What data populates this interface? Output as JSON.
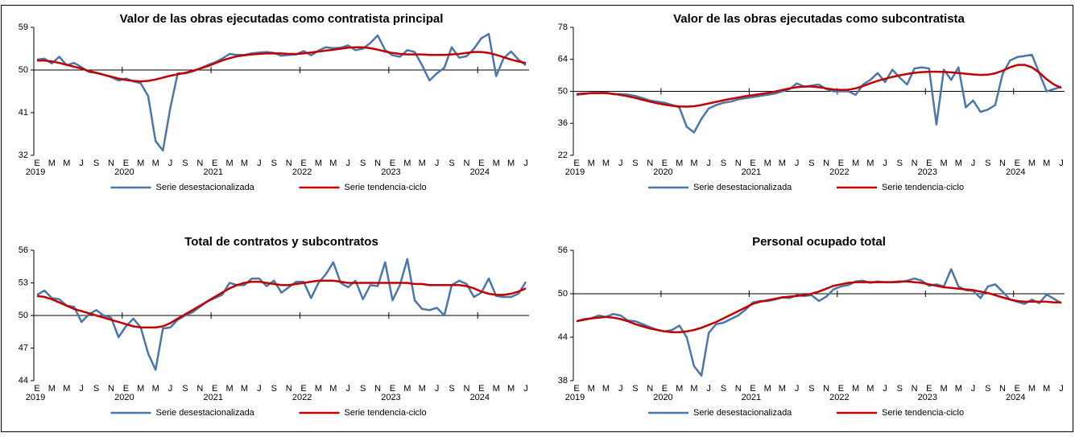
{
  "chart_data": [
    {
      "type": "line",
      "title": "Valor de las obras ejecutadas como contratista principal",
      "categories": [
        "E",
        null,
        "M",
        null,
        "M",
        null,
        "J",
        null,
        "S",
        null,
        "N",
        null,
        "E",
        null,
        "M",
        null,
        "M",
        null,
        "J",
        null,
        "S",
        null,
        "N",
        null,
        "E",
        null,
        "M",
        null,
        "M",
        null,
        "J",
        null,
        "S",
        null,
        "N",
        null,
        "E",
        null,
        "M",
        null,
        "M",
        null,
        "J",
        null,
        "S",
        null,
        "N",
        null,
        "E",
        null,
        "M",
        null,
        "M",
        null,
        "J",
        null,
        "S",
        null,
        "N",
        null,
        "E",
        null,
        "M",
        null,
        "M",
        null,
        "J"
      ],
      "year_labels": [
        "2019",
        "2020",
        "2021",
        "2022",
        "2023",
        "2024"
      ],
      "ylim": [
        32,
        59
      ],
      "yticks": [
        32,
        41,
        50,
        59
      ],
      "reference_line": 50,
      "series": [
        {
          "name": "Serie desestacionalizada",
          "color": "#4a76a8",
          "values": [
            52.2,
            52.4,
            51.4,
            52.8,
            51.0,
            51.5,
            50.6,
            49.6,
            49.4,
            49.0,
            48.5,
            47.8,
            48.2,
            47.6,
            47.2,
            44.5,
            35.0,
            33.0,
            42.0,
            49.3,
            49.3,
            49.7,
            50.3,
            51.0,
            51.6,
            52.4,
            53.4,
            53.2,
            53.2,
            53.5,
            53.7,
            53.8,
            53.6,
            53.0,
            53.2,
            53.3,
            54.0,
            53.1,
            54.1,
            54.8,
            54.6,
            54.7,
            55.2,
            54.2,
            54.5,
            55.7,
            57.3,
            54.2,
            53.1,
            52.8,
            54.2,
            53.8,
            51.0,
            47.8,
            49.3,
            50.5,
            54.8,
            52.6,
            52.9,
            54.5,
            56.7,
            57.6,
            48.7,
            52.5,
            53.9,
            52.2,
            51.0
          ]
        },
        {
          "name": "Serie tendencia-ciclo",
          "color": "#c00000",
          "values": [
            52.0,
            52.0,
            51.8,
            51.5,
            51.1,
            50.7,
            50.3,
            49.8,
            49.4,
            49.0,
            48.6,
            48.2,
            47.9,
            47.7,
            47.6,
            47.7,
            48.0,
            48.4,
            48.8,
            49.1,
            49.4,
            49.8,
            50.3,
            50.8,
            51.4,
            52.0,
            52.5,
            52.9,
            53.1,
            53.3,
            53.4,
            53.5,
            53.5,
            53.5,
            53.4,
            53.4,
            53.5,
            53.7,
            53.9,
            54.1,
            54.3,
            54.5,
            54.7,
            54.8,
            54.8,
            54.6,
            54.3,
            53.9,
            53.6,
            53.4,
            53.3,
            53.3,
            53.3,
            53.2,
            53.2,
            53.2,
            53.3,
            53.4,
            53.6,
            53.8,
            53.8,
            53.6,
            53.2,
            52.7,
            52.2,
            51.8,
            51.5
          ]
        }
      ]
    },
    {
      "type": "line",
      "title": "Valor de las obras ejecutadas como subcontratista",
      "categories": [
        "E",
        null,
        "M",
        null,
        "M",
        null,
        "J",
        null,
        "S",
        null,
        "N",
        null,
        "E",
        null,
        "M",
        null,
        "M",
        null,
        "J",
        null,
        "S",
        null,
        "N",
        null,
        "E",
        null,
        "M",
        null,
        "M",
        null,
        "J",
        null,
        "S",
        null,
        "N",
        null,
        "E",
        null,
        "M",
        null,
        "M",
        null,
        "J",
        null,
        "S",
        null,
        "N",
        null,
        "E",
        null,
        "M",
        null,
        "M",
        null,
        "J",
        null,
        "S",
        null,
        "N",
        null,
        "E",
        null,
        "M",
        null,
        "M",
        null,
        "J"
      ],
      "year_labels": [
        "2019",
        "2020",
        "2021",
        "2022",
        "2023",
        "2024"
      ],
      "ylim": [
        22,
        78
      ],
      "yticks": [
        22,
        36,
        50,
        64,
        78
      ],
      "reference_line": 50,
      "series": [
        {
          "name": "Serie desestacionalizada",
          "color": "#4a76a8",
          "values": [
            48.5,
            48.8,
            49.3,
            49.2,
            49.5,
            48.7,
            48.8,
            48.6,
            48.0,
            47.0,
            46.0,
            45.5,
            45.0,
            44.0,
            43.0,
            34.5,
            32.0,
            38.0,
            42.5,
            44.0,
            45.0,
            45.5,
            46.5,
            47.0,
            47.5,
            48.0,
            48.5,
            49.0,
            50.0,
            51.0,
            53.5,
            52.0,
            52.5,
            53.0,
            51.0,
            50.0,
            50.0,
            50.0,
            48.5,
            53.0,
            55.0,
            58.0,
            54.0,
            59.5,
            56.0,
            53.0,
            60.0,
            60.5,
            60.0,
            35.5,
            59.5,
            55.0,
            60.5,
            43.0,
            46.0,
            41.0,
            42.0,
            44.0,
            57.5,
            63.5,
            65.0,
            65.5,
            66.0,
            58.0,
            50.0,
            51.0,
            52.0
          ]
        },
        {
          "name": "Serie tendencia-ciclo",
          "color": "#c00000",
          "values": [
            48.8,
            49.0,
            49.2,
            49.3,
            49.2,
            48.9,
            48.4,
            47.8,
            47.1,
            46.3,
            45.5,
            44.8,
            44.2,
            43.7,
            43.4,
            43.3,
            43.5,
            44.0,
            44.7,
            45.4,
            46.1,
            46.7,
            47.3,
            47.9,
            48.3,
            48.8,
            49.3,
            49.9,
            50.6,
            51.3,
            51.8,
            52.1,
            52.1,
            51.8,
            51.3,
            50.8,
            50.6,
            50.7,
            51.3,
            52.3,
            53.5,
            54.6,
            55.5,
            56.3,
            57.0,
            57.6,
            58.1,
            58.4,
            58.6,
            58.6,
            58.5,
            58.3,
            58.0,
            57.7,
            57.4,
            57.2,
            57.3,
            57.9,
            59.0,
            60.5,
            61.5,
            61.6,
            60.5,
            58.2,
            55.3,
            53.0,
            51.5
          ]
        }
      ]
    },
    {
      "type": "line",
      "title": "Total de contratos y subcontratos",
      "categories": [
        "E",
        null,
        "M",
        null,
        "M",
        null,
        "J",
        null,
        "S",
        null,
        "N",
        null,
        "E",
        null,
        "M",
        null,
        "M",
        null,
        "J",
        null,
        "S",
        null,
        "N",
        null,
        "E",
        null,
        "M",
        null,
        "M",
        null,
        "J",
        null,
        "S",
        null,
        "N",
        null,
        "E",
        null,
        "M",
        null,
        "M",
        null,
        "J",
        null,
        "S",
        null,
        "N",
        null,
        "E",
        null,
        "M",
        null,
        "M",
        null,
        "J",
        null,
        "S",
        null,
        "N",
        null,
        "E",
        null,
        "M",
        null,
        "M",
        null,
        "J"
      ],
      "year_labels": [
        "2019",
        "2020",
        "2021",
        "2022",
        "2023",
        "2024"
      ],
      "ylim": [
        44,
        56
      ],
      "yticks": [
        44,
        47,
        50,
        53,
        56
      ],
      "reference_line": 50,
      "series": [
        {
          "name": "Serie desestacionalizada",
          "color": "#4a76a8",
          "values": [
            51.9,
            52.3,
            51.6,
            51.5,
            50.9,
            50.8,
            49.4,
            50.1,
            50.5,
            50.0,
            49.8,
            48.0,
            49.0,
            49.7,
            48.9,
            46.5,
            45.0,
            48.8,
            48.9,
            49.6,
            50.0,
            50.3,
            50.8,
            51.3,
            51.6,
            51.9,
            53.0,
            52.8,
            52.8,
            53.4,
            53.4,
            52.7,
            53.2,
            52.1,
            52.6,
            53.1,
            53.1,
            51.6,
            53.0,
            53.8,
            54.9,
            53.0,
            52.6,
            53.2,
            51.5,
            52.8,
            52.7,
            54.9,
            51.4,
            52.8,
            55.2,
            51.4,
            50.6,
            50.5,
            50.7,
            50.0,
            52.8,
            53.2,
            52.9,
            51.7,
            52.1,
            53.4,
            51.8,
            51.7,
            51.7,
            52.0,
            53.1
          ]
        },
        {
          "name": "Serie tendencia-ciclo",
          "color": "#c00000",
          "values": [
            51.8,
            51.7,
            51.5,
            51.2,
            50.9,
            50.6,
            50.4,
            50.2,
            50.0,
            49.8,
            49.6,
            49.4,
            49.2,
            49.0,
            48.9,
            48.9,
            48.9,
            49.0,
            49.3,
            49.7,
            50.1,
            50.5,
            50.9,
            51.3,
            51.7,
            52.1,
            52.5,
            52.8,
            53.0,
            53.1,
            53.1,
            53.0,
            52.9,
            52.8,
            52.8,
            52.9,
            53.0,
            53.1,
            53.2,
            53.2,
            53.2,
            53.1,
            53.0,
            53.0,
            53.0,
            53.0,
            53.0,
            53.0,
            53.0,
            53.0,
            53.0,
            52.9,
            52.9,
            52.8,
            52.8,
            52.8,
            52.8,
            52.8,
            52.7,
            52.5,
            52.2,
            52.0,
            51.9,
            51.9,
            52.0,
            52.2,
            52.5
          ]
        }
      ]
    },
    {
      "type": "line",
      "title": "Personal ocupado total",
      "categories": [
        "E",
        null,
        "M",
        null,
        "M",
        null,
        "J",
        null,
        "S",
        null,
        "N",
        null,
        "E",
        null,
        "M",
        null,
        "M",
        null,
        "J",
        null,
        "S",
        null,
        "N",
        null,
        "E",
        null,
        "M",
        null,
        "M",
        null,
        "J",
        null,
        "S",
        null,
        "N",
        null,
        "E",
        null,
        "M",
        null,
        "M",
        null,
        "J",
        null,
        "S",
        null,
        "N",
        null,
        "E",
        null,
        "M",
        null,
        "M",
        null,
        "J",
        null,
        "S",
        null,
        "N",
        null,
        "E",
        null,
        "M",
        null,
        "M",
        null,
        "J"
      ],
      "year_labels": [
        "2019",
        "2020",
        "2021",
        "2022",
        "2023",
        "2024"
      ],
      "ylim": [
        38,
        56
      ],
      "yticks": [
        38,
        44,
        50,
        56
      ],
      "reference_line": 50,
      "series": [
        {
          "name": "Serie desestacionalizada",
          "color": "#4a76a8",
          "values": [
            46.2,
            46.5,
            46.6,
            47.0,
            46.8,
            47.2,
            47.0,
            46.3,
            46.2,
            45.8,
            45.4,
            45.0,
            44.8,
            45.0,
            45.6,
            44.0,
            40.0,
            38.7,
            44.6,
            45.8,
            46.0,
            46.5,
            47.0,
            47.8,
            48.8,
            49.0,
            49.0,
            49.2,
            49.5,
            49.4,
            49.8,
            49.7,
            49.8,
            49.0,
            49.6,
            50.6,
            51.0,
            51.2,
            51.7,
            51.8,
            51.5,
            51.7,
            51.6,
            51.6,
            51.6,
            51.8,
            52.1,
            51.8,
            51.1,
            51.3,
            51.0,
            53.4,
            51.0,
            50.5,
            50.4,
            49.4,
            51.0,
            51.3,
            50.3,
            49.2,
            48.9,
            48.6,
            49.2,
            48.7,
            49.9,
            49.3,
            48.7
          ]
        },
        {
          "name": "Serie tendencia-ciclo",
          "color": "#c00000",
          "values": [
            46.2,
            46.4,
            46.6,
            46.7,
            46.8,
            46.7,
            46.5,
            46.2,
            45.8,
            45.5,
            45.2,
            45.0,
            44.8,
            44.7,
            44.7,
            44.8,
            45.0,
            45.3,
            45.7,
            46.1,
            46.6,
            47.1,
            47.6,
            48.1,
            48.6,
            48.9,
            49.1,
            49.3,
            49.5,
            49.6,
            49.7,
            49.8,
            50.0,
            50.3,
            50.7,
            51.1,
            51.3,
            51.5,
            51.6,
            51.6,
            51.6,
            51.6,
            51.6,
            51.6,
            51.7,
            51.7,
            51.6,
            51.5,
            51.3,
            51.1,
            50.9,
            50.8,
            50.7,
            50.6,
            50.5,
            50.3,
            50.1,
            49.8,
            49.5,
            49.2,
            49.0,
            48.9,
            48.9,
            48.9,
            48.9,
            48.8,
            48.8
          ]
        }
      ]
    }
  ]
}
